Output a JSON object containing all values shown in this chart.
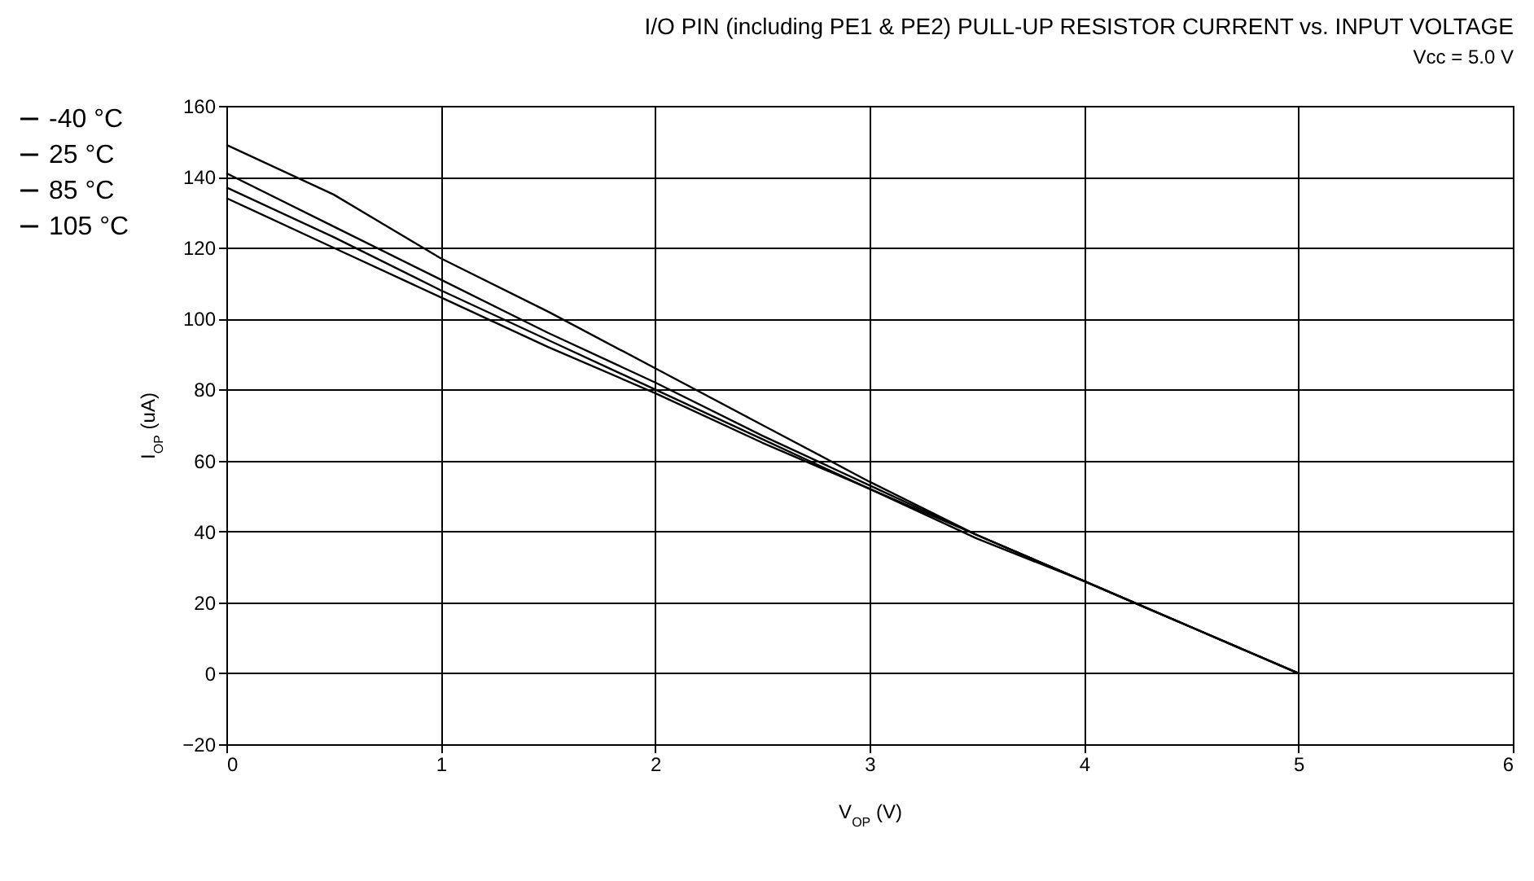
{
  "chart_data": {
    "type": "line",
    "title": "I/O PIN (including PE1 & PE2) PULL-UP RESISTOR CURRENT vs. INPUT VOLTAGE",
    "subtitle": "Vcc = 5.0 V",
    "xlabel": "V$_{OP}$ (V)",
    "ylabel": "I$_{OP}$ (uA)",
    "x": [
      0,
      0.5,
      1,
      1.5,
      2,
      2.5,
      3,
      3.5,
      4,
      4.5,
      5
    ],
    "series": [
      {
        "name": "-40 °C",
        "color": "#000000",
        "values": [
          149,
          135,
          117,
          102,
          86,
          70,
          54,
          39,
          26,
          13,
          0
        ]
      },
      {
        "name": "25 °C",
        "color": "#000000",
        "values": [
          141,
          126,
          111,
          96,
          82,
          67,
          53,
          39,
          26,
          13,
          0
        ]
      },
      {
        "name": "85 °C",
        "color": "#000000",
        "values": [
          137,
          123,
          108,
          94,
          80,
          66,
          52,
          39,
          26,
          13,
          0
        ]
      },
      {
        "name": "105 °C",
        "color": "#000000",
        "values": [
          134,
          120,
          106,
          92,
          79,
          65,
          52,
          38,
          26,
          13,
          0
        ]
      }
    ],
    "xlim": [
      0,
      6
    ],
    "xticks": [
      0,
      1,
      2,
      3,
      4,
      5,
      6
    ],
    "ylim": [
      -20,
      160
    ],
    "yticks": [
      -20,
      0,
      20,
      40,
      60,
      80,
      100,
      120,
      140,
      160
    ],
    "grid": true,
    "legend": "left",
    "line_style": "solid"
  }
}
